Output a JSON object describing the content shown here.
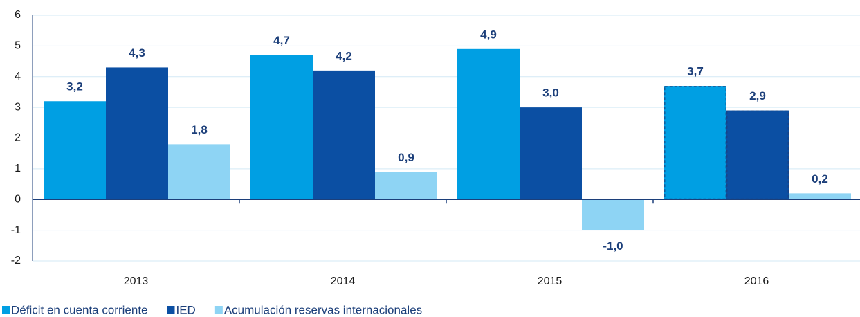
{
  "chart_data": {
    "type": "bar",
    "categories": [
      "2013",
      "2014",
      "2015",
      "2016"
    ],
    "series": [
      {
        "name": "Déficit en cuenta corriente",
        "color": "#009fe3",
        "values": [
          3.2,
          4.7,
          4.9,
          3.7
        ],
        "value_labels": [
          "3,2",
          "4,7",
          "4,9",
          "3,7"
        ]
      },
      {
        "name": "IED",
        "color": "#0b4fa3",
        "values": [
          4.3,
          4.2,
          3.0,
          2.9
        ],
        "value_labels": [
          "4,3",
          "4,2",
          "3,0",
          "2,9"
        ]
      },
      {
        "name": "Acumulación reservas internacionales",
        "color": "#8ed4f4",
        "values": [
          1.8,
          0.9,
          -1.0,
          0.2
        ],
        "value_labels": [
          "1,8",
          "0,9",
          "-1,0",
          "0,2"
        ]
      }
    ],
    "ylim": [
      -2,
      6
    ],
    "yticks": [
      -2,
      -1,
      0,
      1,
      2,
      3,
      4,
      5,
      6
    ],
    "grid": true,
    "dashed_categories": [
      3
    ],
    "legend": "bottom-left"
  }
}
